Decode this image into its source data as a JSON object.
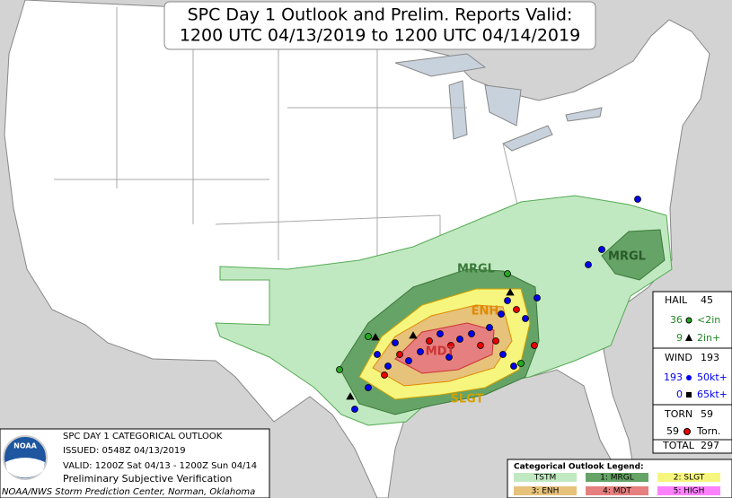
{
  "title": {
    "line1": "SPC Day 1 Outlook and Prelim. Reports Valid:",
    "line2": "1200 UTC 04/13/2019 to 1200 UTC 04/14/2019"
  },
  "map_labels": {
    "mrgl_south": "MRGL",
    "mrgl_east": "MRGL",
    "enh": "ENH",
    "mdt": "MDT",
    "slgt": "SLGT"
  },
  "reports": {
    "hail": {
      "label": "HAIL",
      "total": 45,
      "rows": [
        {
          "count": 36,
          "label": "<2in"
        },
        {
          "count": 9,
          "label": "2in+"
        }
      ]
    },
    "wind": {
      "label": "WIND",
      "total": 193,
      "rows": [
        {
          "count": 193,
          "label": "50kt+"
        },
        {
          "count": 0,
          "label": "65kt+"
        }
      ]
    },
    "tornado": {
      "label": "TORN",
      "total": 59,
      "rows": [
        {
          "count": 59,
          "label": "Torn."
        }
      ]
    },
    "total": {
      "label": "TOTAL",
      "value": 297
    }
  },
  "info": {
    "heading": "SPC DAY 1 CATEGORICAL OUTLOOK",
    "issued": "ISSUED: 0548Z 04/13/2019",
    "valid": "VALID: 1200Z Sat 04/13 - 1200Z Sun 04/14",
    "verification": "Preliminary Subjective Verification",
    "credit": "NOAA/NWS Storm Prediction Center, Norman, Oklahoma",
    "logo": "NOAA"
  },
  "legend": {
    "title": "Categorical Outlook Legend:",
    "items": [
      "TSTM",
      "1: MRGL",
      "2: SLGT",
      "3: ENH",
      "4: MDT",
      "5: HIGH"
    ]
  }
}
